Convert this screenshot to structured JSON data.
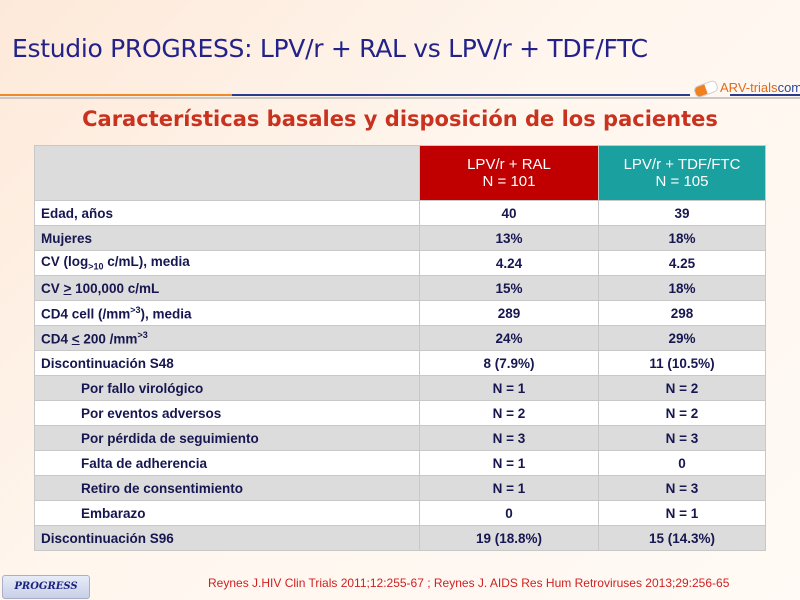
{
  "title": "Estudio PROGRESS: LPV/r + RAL vs LPV/r + TDF/FTC",
  "logo": {
    "brand": "ARV-trials",
    "suffix": "com"
  },
  "subtitle": "Características basales y disposición de los pacientes",
  "table": {
    "headers": [
      {
        "line1": "LPV/r + RAL",
        "line2": "N = 101"
      },
      {
        "line1": "LPV/r + TDF/FTC",
        "line2": "N = 105"
      }
    ],
    "rows": [
      {
        "label": "Edad, años",
        "a": "40",
        "b": "39"
      },
      {
        "label": "Mujeres",
        "a": "13%",
        "b": "18%"
      },
      {
        "label": "CV (log10 c/mL), media",
        "a": "4.24",
        "b": "4.25"
      },
      {
        "label": "CV > 100,000 c/mL",
        "a": "15%",
        "b": "18%"
      },
      {
        "label": "CD4 cell (/mm3), media",
        "a": "289",
        "b": "298"
      },
      {
        "label": "CD4 < 200 /mm3",
        "a": "24%",
        "b": "29%"
      },
      {
        "label": "Discontinuación S48",
        "a": "8 (7.9%)",
        "b": "11 (10.5%)"
      },
      {
        "label": "Por fallo virológico",
        "a": "N = 1",
        "b": "N = 2"
      },
      {
        "label": "Por eventos adversos",
        "a": "N = 2",
        "b": "N = 2"
      },
      {
        "label": "Por pérdida de seguimiento",
        "a": "N = 3",
        "b": "N = 3"
      },
      {
        "label": "Falta de adherencia",
        "a": "N = 1",
        "b": "0"
      },
      {
        "label": "Retiro de consentimiento",
        "a": "N = 1",
        "b": "N = 3"
      },
      {
        "label": "Embarazo",
        "a": "0",
        "b": "N = 1"
      },
      {
        "label": "Discontinuación S96",
        "a": "19 (18.8%)",
        "b": "15 (14.3%)"
      }
    ]
  },
  "badge": "PROGRESS",
  "reference": "Reynes J.HIV Clin Trials 2011;12:255-67 ; Reynes J. AIDS Res Hum Retroviruses 2013;29:256-65"
}
